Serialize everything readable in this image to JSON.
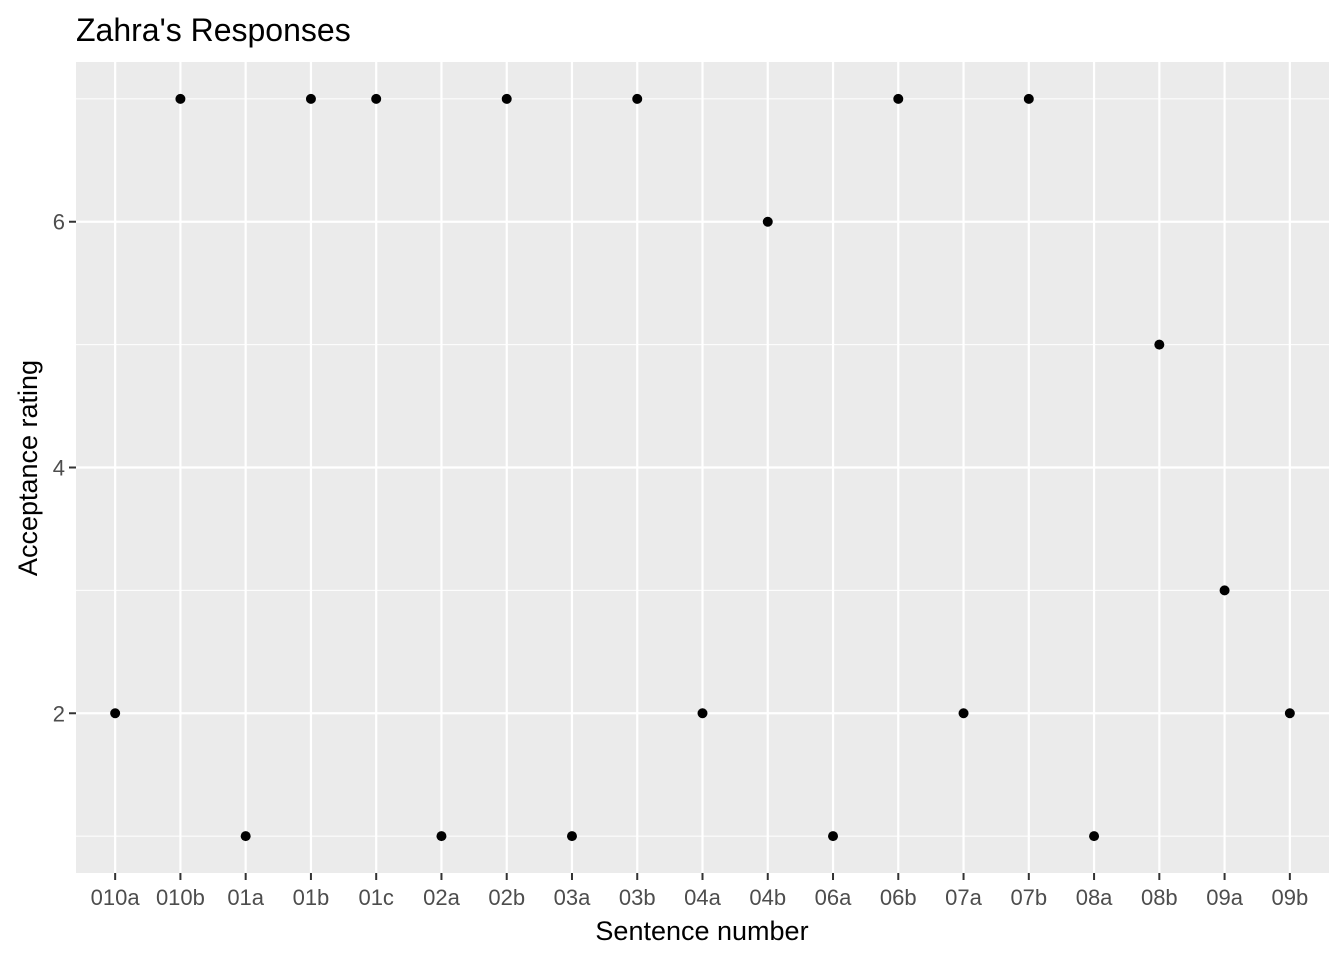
{
  "chart_data": {
    "type": "scatter",
    "title": "Zahra's Responses",
    "xlabel": "Sentence number",
    "ylabel": "Acceptance rating",
    "categories": [
      "010a",
      "010b",
      "01a",
      "01b",
      "01c",
      "02a",
      "02b",
      "03a",
      "03b",
      "04a",
      "04b",
      "06a",
      "06b",
      "07a",
      "07b",
      "08a",
      "08b",
      "09a",
      "09b"
    ],
    "values": [
      2,
      7,
      1,
      7,
      7,
      1,
      7,
      1,
      7,
      2,
      6,
      1,
      7,
      2,
      7,
      1,
      5,
      3,
      2
    ],
    "ylim": [
      0.7,
      7.3
    ],
    "yticks": [
      2,
      4,
      6
    ],
    "ytick_labels": [
      "2",
      "4",
      "6"
    ],
    "grid": true,
    "legend": "none",
    "colors": {
      "panel_background": "#ebebeb",
      "grid_major": "#ffffff",
      "points": "#000000",
      "tick_label": "#4d4d4d",
      "tick_mark": "#333333"
    }
  }
}
